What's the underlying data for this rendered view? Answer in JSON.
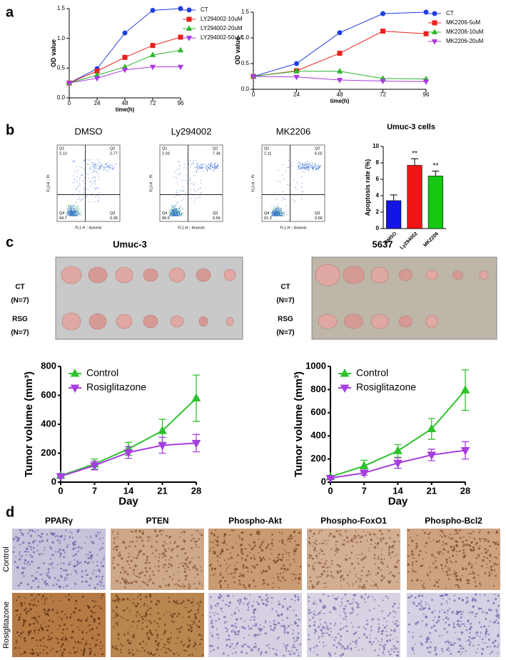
{
  "panel_labels": [
    "a",
    "b",
    "c",
    "d"
  ],
  "chart_data": [
    {
      "type": "line",
      "x": [
        0,
        24,
        48,
        72,
        96
      ],
      "xlim": [
        0,
        96
      ],
      "xticks": [
        0,
        24,
        48,
        72,
        96
      ],
      "ylim": [
        0,
        1.5
      ],
      "yticks": [
        {
          "value": 0,
          "label": "0.0"
        },
        0.5,
        {
          "value": 1,
          "label": "1.0"
        },
        1.5
      ],
      "xlabel": "time(h)",
      "ylabel": "OD value",
      "legend": "right",
      "series": [
        {
          "name": "CT",
          "color": "#1f3fe0",
          "marker": "circle",
          "values": [
            0.25,
            0.49,
            1.09,
            1.47,
            1.5
          ]
        },
        {
          "name": "LY294002-10uM",
          "color": "#e8201c",
          "marker": "square",
          "values": [
            0.25,
            0.45,
            0.68,
            0.88,
            1.02
          ]
        },
        {
          "name": "LY294002-20uM",
          "color": "#2bb52b",
          "marker": "triangle-up",
          "values": [
            0.25,
            0.38,
            0.52,
            0.72,
            0.8
          ]
        },
        {
          "name": "LY294002-50uM",
          "color": "#a93ae0",
          "marker": "triangle-down",
          "values": [
            0.25,
            0.33,
            0.47,
            0.52,
            0.52
          ]
        }
      ]
    },
    {
      "type": "line",
      "x": [
        0,
        24,
        48,
        72,
        96
      ],
      "xlim": [
        0,
        96
      ],
      "xticks": [
        0,
        24,
        48,
        72,
        96
      ],
      "ylim": [
        0,
        1.5
      ],
      "yticks": [
        {
          "value": 0,
          "label": "0.0"
        },
        0.5,
        {
          "value": 1,
          "label": "1.0"
        },
        1.5
      ],
      "xlabel": "time(h)",
      "ylabel": "OD value",
      "legend": "right",
      "series": [
        {
          "name": "CT",
          "color": "#1f3fe0",
          "marker": "circle",
          "values": [
            0.25,
            0.5,
            1.1,
            1.47,
            1.5
          ]
        },
        {
          "name": "MK2206-5uM",
          "color": "#e8201c",
          "marker": "square",
          "values": [
            0.25,
            0.36,
            0.7,
            1.13,
            1.08
          ]
        },
        {
          "name": "MK2206-10uM",
          "color": "#2bb52b",
          "marker": "triangle-up",
          "values": [
            0.25,
            0.35,
            0.35,
            0.21,
            0.2
          ]
        },
        {
          "name": "MK2206-20uM",
          "color": "#a93ae0",
          "marker": "triangle-down",
          "values": [
            0.25,
            0.24,
            0.18,
            0.16,
            0.15
          ]
        }
      ]
    },
    {
      "type": "bar",
      "title": "Umuc-3 cells",
      "ylabel": "Apoptosis rate (%)",
      "categories": [
        "DMSO",
        "Ly294002",
        "MK2206"
      ],
      "values": [
        3.4,
        7.7,
        6.4
      ],
      "errors": [
        0.7,
        0.8,
        0.6
      ],
      "colors": [
        "#1414e6",
        "#f01414",
        "#14c814"
      ],
      "significance": [
        null,
        "**",
        "**"
      ],
      "ylim": [
        0,
        10
      ],
      "yticks": [
        0,
        2,
        4,
        6,
        8,
        10
      ]
    },
    {
      "type": "line",
      "x": [
        0,
        7,
        14,
        21,
        28
      ],
      "xlim": [
        0,
        28
      ],
      "xticks": [
        0,
        7,
        14,
        21,
        28
      ],
      "ylim": [
        0,
        800
      ],
      "yticks": [
        0,
        200,
        400,
        600,
        800
      ],
      "xlabel": "Day",
      "ylabel": "Tumor volume (mm³)",
      "legend": "upper left",
      "series": [
        {
          "name": "Control",
          "color": "#2fc12f",
          "marker": "triangle-up",
          "values": [
            45,
            125,
            230,
            355,
            580
          ],
          "errors": [
            10,
            35,
            45,
            80,
            160
          ]
        },
        {
          "name": "Rosiglitazone",
          "color": "#a63ee0",
          "marker": "triangle-down",
          "values": [
            40,
            115,
            205,
            255,
            270
          ],
          "errors": [
            10,
            30,
            40,
            55,
            60
          ]
        }
      ]
    },
    {
      "type": "line",
      "x": [
        0,
        7,
        14,
        21,
        28
      ],
      "xlim": [
        0,
        28
      ],
      "xticks": [
        0,
        7,
        14,
        21,
        28
      ],
      "ylim": [
        0,
        1000
      ],
      "yticks": [
        0,
        200,
        400,
        600,
        800,
        1000
      ],
      "xlabel": "Day",
      "ylabel": "Tumor volume (mm³)",
      "legend": "upper left",
      "series": [
        {
          "name": "Control",
          "color": "#2fc12f",
          "marker": "triangle-up",
          "values": [
            45,
            140,
            270,
            460,
            795
          ],
          "errors": [
            10,
            50,
            55,
            90,
            175
          ]
        },
        {
          "name": "Rosiglitazone",
          "color": "#a63ee0",
          "marker": "triangle-down",
          "values": [
            35,
            80,
            165,
            235,
            275
          ],
          "errors": [
            10,
            20,
            45,
            50,
            75
          ]
        }
      ]
    }
  ],
  "flow_plots": {
    "x_label": "FL1-H :: Annexin",
    "y_label": "FL3-H :: PI",
    "quadrant_names": [
      "Q1",
      "Q2",
      "Q3",
      "Q4"
    ],
    "plots": [
      {
        "title": "DMSO",
        "quadrants": [
          2.13,
          2.77,
          0.39,
          94.7
        ]
      },
      {
        "title": "Ly294002",
        "quadrants": [
          2.03,
          7.34,
          0.69,
          89.9
        ]
      },
      {
        "title": "MK2206",
        "quadrants": [
          2.11,
          6.02,
          0.56,
          91.3
        ]
      }
    ]
  },
  "photos": [
    {
      "title": "Umuc-3",
      "rows": [
        {
          "group": "CT",
          "n": "(N=7)"
        },
        {
          "group": "RSG",
          "n": "(N=7)"
        }
      ]
    },
    {
      "title": "5637",
      "rows": [
        {
          "group": "CT",
          "n": "(N=7)"
        },
        {
          "group": "RSG",
          "n": "(N=7)"
        }
      ]
    }
  ],
  "ihc": {
    "columns": [
      "PPARγ",
      "PTEN",
      "Phospho-Akt",
      "Phospho-FoxO1",
      "Phospho-Bcl2"
    ],
    "rows": [
      "Control",
      "Rosiglitazone"
    ]
  }
}
